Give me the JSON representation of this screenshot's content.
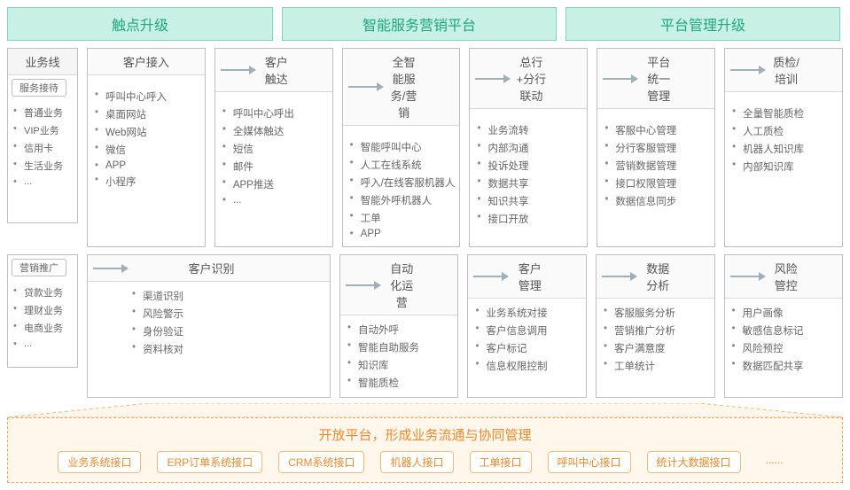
{
  "colors": {
    "section_bg": "#c8f0e4",
    "section_border": "#7fd4bc",
    "section_text": "#1fa77e",
    "box_border": "#bfbfbf",
    "arrow": "#9fb0b8",
    "open_border": "#f5a55a",
    "open_bg": "#fff6ec",
    "open_text": "#f08a2c"
  },
  "sections": [
    "触点升级",
    "智能服务营销平台",
    "平台管理升级"
  ],
  "left": {
    "title": "业务线",
    "tag1": "服务接待",
    "list1": [
      "普通业务",
      "VIP业务",
      "信用卡",
      "生活业务",
      "..."
    ],
    "tag2": "营销推广",
    "list2": [
      "贷款业务",
      "理财业务",
      "电商业务",
      "..."
    ]
  },
  "row1": {
    "c1": {
      "title": "客户接入",
      "items": [
        "呼叫中心呼入",
        "桌面网站",
        "Web网站",
        "微信",
        "APP",
        "小程序"
      ]
    },
    "c2": {
      "title": "客户触达",
      "items": [
        "呼叫中心呼出",
        "全媒体触达",
        "短信",
        "邮件",
        "APP推送",
        "..."
      ]
    },
    "c3": {
      "title": "全智能服务/营销",
      "items": [
        "智能呼叫中心",
        "人工在线系统",
        "呼入/在线客服机器人",
        "智能外呼机器人",
        "工单",
        "APP"
      ]
    },
    "c4": {
      "title": "总行+分行联动",
      "items": [
        "业务流转",
        "内部沟通",
        "投诉处理",
        "数据共享",
        "知识共享",
        "接口开放"
      ]
    },
    "c5": {
      "title": "平台统一管理",
      "items": [
        "客服中心管理",
        "分行客服管理",
        "营销数据管理",
        "接口权限管理",
        "数据信息同步"
      ]
    },
    "c6": {
      "title": "质检/培训",
      "items": [
        "全量智能质检",
        "人工质检",
        "机器人知识库",
        "内部知识库"
      ]
    }
  },
  "row2": {
    "c1": {
      "title": "客户识别",
      "items": [
        "渠道识别",
        "风险警示",
        "身份验证",
        "资料核对"
      ]
    },
    "c2": {
      "title": "自动化运营",
      "items": [
        "自动外呼",
        "智能自助服务",
        "知识库",
        "智能质检"
      ]
    },
    "c3": {
      "title": "客户管理",
      "items": [
        "业务系统对接",
        "客户信息调用",
        "客户标记",
        "信息权限控制"
      ]
    },
    "c4": {
      "title": "数据分析",
      "items": [
        "客服服务分析",
        "营销推广分析",
        "客户满意度",
        "工单统计"
      ]
    },
    "c5": {
      "title": "风险管控",
      "items": [
        "用户画像",
        "敏感信息标记",
        "风险预控",
        "数据匹配共享"
      ]
    }
  },
  "bottom": {
    "title": "开放平台，形成业务流通与协同管理",
    "chips": [
      "业务系统接口",
      "ERP订单系统接口",
      "CRM系统接口",
      "机器人接口",
      "工单接口",
      "呼叫中心接口",
      "统计大数据接口",
      "......"
    ]
  }
}
